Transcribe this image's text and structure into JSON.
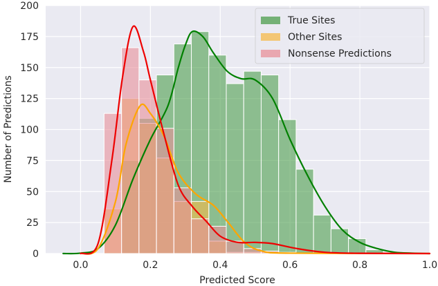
{
  "chart_data": {
    "type": "bar",
    "xlabel": "Predicted Score",
    "ylabel": "Number of Predictions",
    "xlim": [
      -0.1,
      1.0
    ],
    "ylim": [
      0,
      200
    ],
    "xticks": [
      "0.0",
      "0.2",
      "0.4",
      "0.6",
      "0.8",
      "1.0"
    ],
    "yticks": [
      "0",
      "25",
      "50",
      "75",
      "100",
      "125",
      "150",
      "175",
      "200"
    ],
    "grid": true,
    "legend_position": "top-right",
    "bin_edges": [
      0.0673,
      0.1173,
      0.1673,
      0.2173,
      0.2673,
      0.3173,
      0.3673,
      0.4173,
      0.4673,
      0.5173,
      0.5673,
      0.6173,
      0.6673,
      0.7173,
      0.7673,
      0.8173
    ],
    "series": [
      {
        "name": "True Sites",
        "color": "#4c9e4c",
        "values": [
          1,
          75,
          109,
          144,
          169,
          179,
          160,
          137,
          147,
          144,
          108,
          68,
          31,
          20,
          12,
          3
        ],
        "kde": [
          [
            -0.05,
            0
          ],
          [
            0.0,
            0.3
          ],
          [
            0.05,
            4
          ],
          [
            0.1,
            23
          ],
          [
            0.15,
            60
          ],
          [
            0.2,
            92
          ],
          [
            0.25,
            119
          ],
          [
            0.28,
            150
          ],
          [
            0.3,
            168
          ],
          [
            0.32,
            179
          ],
          [
            0.35,
            175
          ],
          [
            0.38,
            162
          ],
          [
            0.42,
            147
          ],
          [
            0.46,
            141
          ],
          [
            0.5,
            140
          ],
          [
            0.55,
            125
          ],
          [
            0.6,
            92
          ],
          [
            0.65,
            63
          ],
          [
            0.7,
            38
          ],
          [
            0.75,
            19
          ],
          [
            0.8,
            9
          ],
          [
            0.85,
            4
          ],
          [
            0.9,
            1
          ],
          [
            0.95,
            0.3
          ],
          [
            1.0,
            0
          ]
        ]
      },
      {
        "name": "Other Sites",
        "color": "#f5b94a",
        "values": [
          36,
          125,
          105,
          77,
          42,
          42,
          10,
          1,
          1,
          1,
          0,
          0,
          0,
          0,
          0,
          0
        ],
        "kde": [
          [
            0.0,
            0
          ],
          [
            0.05,
            4
          ],
          [
            0.1,
            42
          ],
          [
            0.13,
            88
          ],
          [
            0.17,
            119
          ],
          [
            0.2,
            113
          ],
          [
            0.24,
            94
          ],
          [
            0.28,
            65
          ],
          [
            0.33,
            48
          ],
          [
            0.38,
            39
          ],
          [
            0.42,
            26
          ],
          [
            0.47,
            9
          ],
          [
            0.52,
            2
          ],
          [
            0.6,
            0.3
          ],
          [
            1.0,
            0
          ]
        ]
      },
      {
        "name": "Nonsense Predictions",
        "color": "#e8909a",
        "values": [
          113,
          166,
          140,
          101,
          53,
          28,
          22,
          10,
          4,
          2,
          1,
          0,
          0,
          0,
          0,
          0
        ],
        "kde": [
          [
            0.0,
            0
          ],
          [
            0.05,
            8
          ],
          [
            0.09,
            76
          ],
          [
            0.12,
            142
          ],
          [
            0.15,
            183
          ],
          [
            0.18,
            163
          ],
          [
            0.2,
            140
          ],
          [
            0.24,
            95
          ],
          [
            0.28,
            55
          ],
          [
            0.32,
            38
          ],
          [
            0.36,
            26
          ],
          [
            0.4,
            14
          ],
          [
            0.45,
            9
          ],
          [
            0.5,
            9
          ],
          [
            0.55,
            8
          ],
          [
            0.62,
            4
          ],
          [
            0.7,
            1
          ],
          [
            0.8,
            0.2
          ],
          [
            1.0,
            0
          ]
        ]
      }
    ],
    "kde_colors": [
      "#008000",
      "#ffa500",
      "#ee0000"
    ]
  }
}
